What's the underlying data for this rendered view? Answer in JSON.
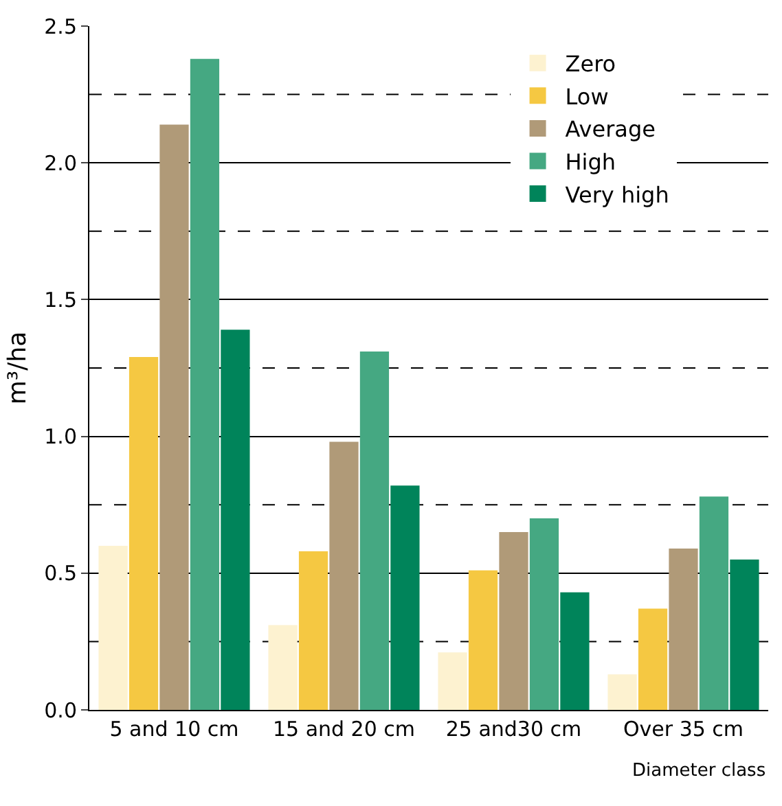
{
  "chart_data": {
    "type": "bar",
    "xlabel": "Diameter class",
    "ylabel": "m³/ha",
    "categories": [
      "5 and 10 cm",
      "15 and 20 cm",
      "25 and30 cm",
      "Over 35 cm"
    ],
    "series": [
      {
        "name": "Zero",
        "color": "#fdf2d0",
        "values": [
          0.6,
          0.31,
          0.21,
          0.13
        ]
      },
      {
        "name": "Low",
        "color": "#f5c842",
        "values": [
          1.29,
          0.58,
          0.51,
          0.37
        ]
      },
      {
        "name": "Average",
        "color": "#b09a78",
        "values": [
          2.14,
          0.98,
          0.65,
          0.59
        ]
      },
      {
        "name": "High",
        "color": "#45a882",
        "values": [
          2.38,
          1.31,
          0.7,
          0.78
        ]
      },
      {
        "name": "Very high",
        "color": "#00845a",
        "values": [
          1.39,
          0.82,
          0.43,
          0.55
        ]
      }
    ],
    "ylim": [
      0,
      2.5
    ],
    "yticks": [
      {
        "value": 0,
        "label": "0.0"
      },
      0.5,
      {
        "value": 1,
        "label": "1.0"
      },
      1.5,
      {
        "value": 2,
        "label": "2.0"
      },
      2.5
    ],
    "grid": "y",
    "legend": "top right",
    "ref_lines": [
      {
        "axis": "y",
        "value": 0.25,
        "line_style": "dashed",
        "color": "#000000"
      },
      {
        "axis": "y",
        "value": 0.75,
        "line_style": "dashed",
        "color": "#000000"
      },
      {
        "axis": "y",
        "value": 1.25,
        "line_style": "dashed",
        "color": "#000000"
      },
      {
        "axis": "y",
        "value": 1.75,
        "line_style": "dashed",
        "color": "#000000"
      },
      {
        "axis": "y",
        "value": 2.25,
        "line_style": "dashed",
        "color": "#000000"
      }
    ]
  }
}
